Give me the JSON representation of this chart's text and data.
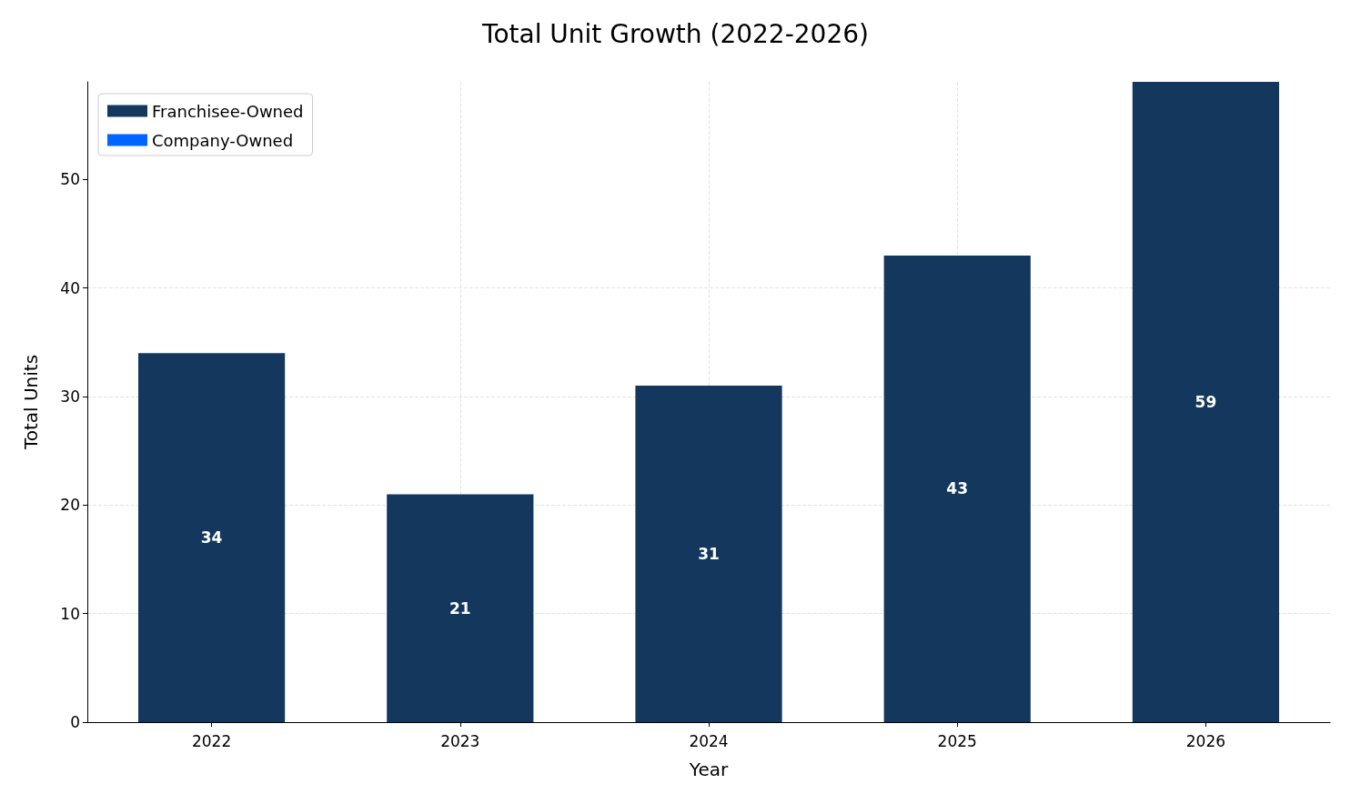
{
  "chart_data": {
    "type": "bar",
    "title": "Total Unit Growth (2022-2026)",
    "xlabel": "Year",
    "ylabel": "Total Units",
    "categories": [
      "2022",
      "2023",
      "2024",
      "2025",
      "2026"
    ],
    "series": [
      {
        "name": "Franchisee-Owned",
        "color": "#14375e",
        "values": [
          34,
          21,
          31,
          43,
          59
        ],
        "value_labels": [
          "34",
          "21",
          "31",
          "43",
          "59"
        ]
      },
      {
        "name": "Company-Owned",
        "color": "#0066ff",
        "values": [
          0,
          0,
          0,
          0,
          0
        ]
      }
    ],
    "stacked": true,
    "ylim": [
      0,
      59
    ],
    "yticks": [
      0,
      10,
      20,
      30,
      40,
      50
    ],
    "grid": true,
    "legend": "top left"
  }
}
